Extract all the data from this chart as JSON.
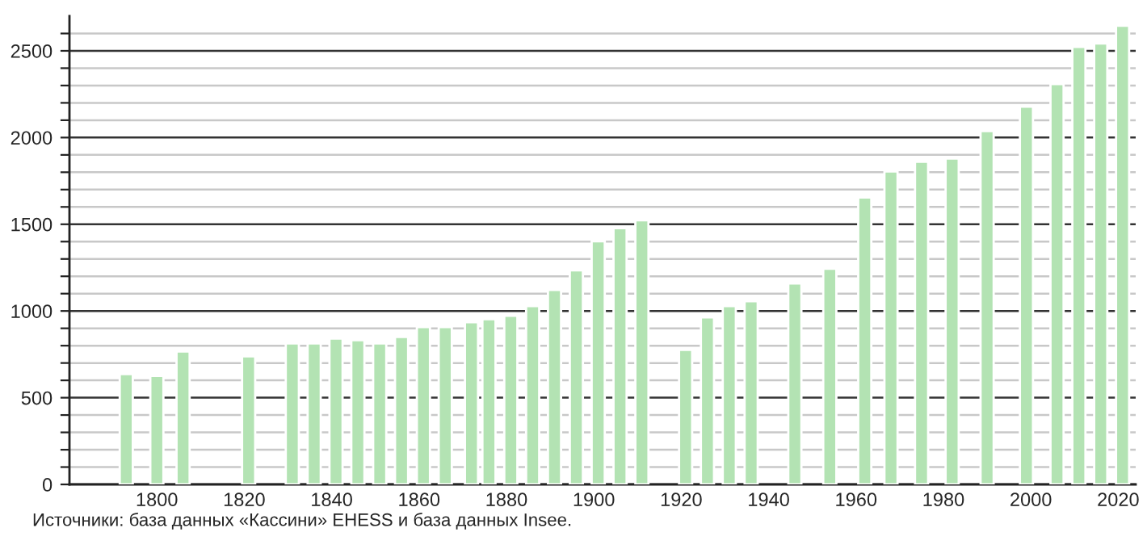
{
  "chart_data": {
    "type": "bar",
    "x": [
      1793,
      1800,
      1806,
      1821,
      1831,
      1836,
      1841,
      1846,
      1851,
      1856,
      1861,
      1866,
      1872,
      1876,
      1881,
      1886,
      1891,
      1896,
      1901,
      1906,
      1911,
      1921,
      1926,
      1931,
      1936,
      1946,
      1954,
      1962,
      1968,
      1975,
      1982,
      1990,
      1999,
      2006,
      2011,
      2016,
      2021
    ],
    "values": [
      636,
      626,
      766,
      738,
      813,
      813,
      841,
      832,
      813,
      850,
      907,
      907,
      935,
      953,
      972,
      1028,
      1121,
      1234,
      1402,
      1477,
      1523,
      776,
      963,
      1028,
      1056,
      1159,
      1243,
      1654,
      1804,
      1860,
      1879,
      2037,
      2178,
      2308,
      2523,
      2542,
      2645
    ],
    "color": "#b3e3b3",
    "xlim": [
      1780,
      2024
    ],
    "xticks": [
      1800,
      1820,
      1840,
      1860,
      1880,
      1900,
      1920,
      1940,
      1960,
      1980,
      2000,
      2020
    ],
    "ylim": [
      0,
      2700
    ],
    "yticks": [
      0,
      {
        "value": 100,
        "label": null
      },
      {
        "value": 200,
        "label": null
      },
      {
        "value": 300,
        "label": null
      },
      {
        "value": 400,
        "label": null
      },
      500,
      {
        "value": 600,
        "label": null
      },
      {
        "value": 700,
        "label": null
      },
      {
        "value": 800,
        "label": null
      },
      {
        "value": 900,
        "label": null
      },
      1000,
      {
        "value": 1100,
        "label": null
      },
      {
        "value": 1200,
        "label": null
      },
      {
        "value": 1300,
        "label": null
      },
      {
        "value": 1400,
        "label": null
      },
      1500,
      {
        "value": 1600,
        "label": null
      },
      {
        "value": 1700,
        "label": null
      },
      {
        "value": 1800,
        "label": null
      },
      {
        "value": 1900,
        "label": null
      },
      2000,
      {
        "value": 2100,
        "label": null
      },
      {
        "value": 2200,
        "label": null
      },
      {
        "value": 2300,
        "label": null
      },
      {
        "value": 2400,
        "label": null
      },
      2500,
      {
        "value": 2600,
        "label": null
      }
    ],
    "grid": "y",
    "annotations": [
      "Источники: база данных «Кассини» EHESS и база данных Insee."
    ]
  }
}
